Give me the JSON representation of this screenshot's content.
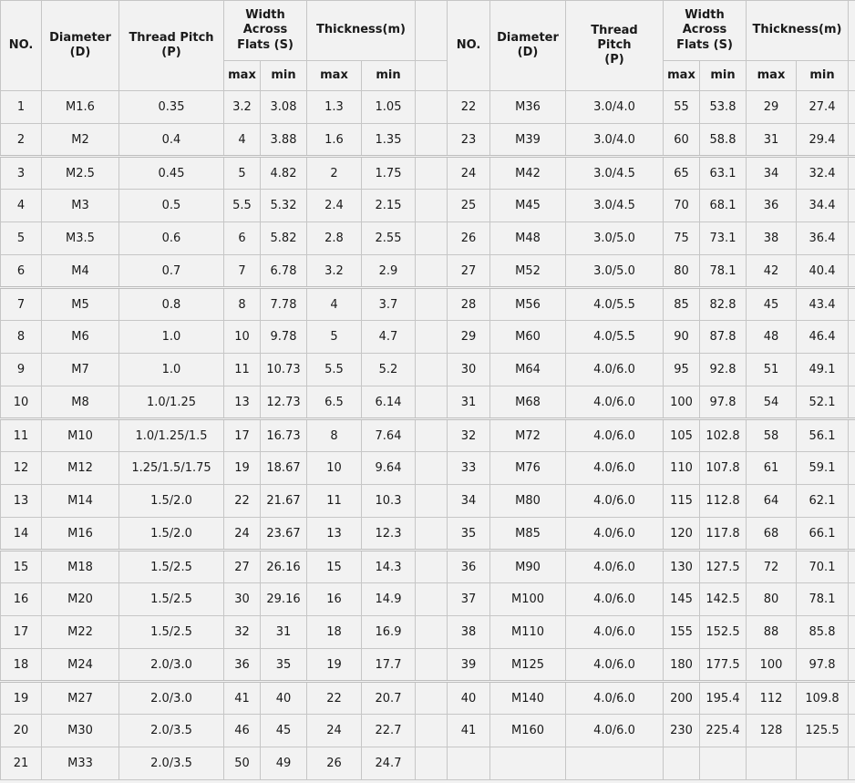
{
  "table": {
    "title_semantic": "metric-nut-dimensions-table",
    "headers": {
      "no": "NO.",
      "diameter": "Diameter (D)",
      "thread_pitch": "Thread Pitch (P)",
      "width_across_flats": "Width Across Flats (S)",
      "thickness": "Thickness(m)",
      "max": "max",
      "min": "min"
    },
    "left_rows": [
      [
        "1",
        "M1.6",
        "0.35",
        "3.2",
        "3.08",
        "1.3",
        "1.05"
      ],
      [
        "2",
        "M2",
        "0.4",
        "4",
        "3.88",
        "1.6",
        "1.35"
      ],
      [
        "3",
        "M2.5",
        "0.45",
        "5",
        "4.82",
        "2",
        "1.75"
      ],
      [
        "4",
        "M3",
        "0.5",
        "5.5",
        "5.32",
        "2.4",
        "2.15"
      ],
      [
        "5",
        "M3.5",
        "0.6",
        "6",
        "5.82",
        "2.8",
        "2.55"
      ],
      [
        "6",
        "M4",
        "0.7",
        "7",
        "6.78",
        "3.2",
        "2.9"
      ],
      [
        "7",
        "M5",
        "0.8",
        "8",
        "7.78",
        "4",
        "3.7"
      ],
      [
        "8",
        "M6",
        "1.0",
        "10",
        "9.78",
        "5",
        "4.7"
      ],
      [
        "9",
        "M7",
        "1.0",
        "11",
        "10.73",
        "5.5",
        "5.2"
      ],
      [
        "10",
        "M8",
        "1.0/1.25",
        "13",
        "12.73",
        "6.5",
        "6.14"
      ],
      [
        "11",
        "M10",
        "1.0/1.25/1.5",
        "17",
        "16.73",
        "8",
        "7.64"
      ],
      [
        "12",
        "M12",
        "1.25/1.5/1.75",
        "19",
        "18.67",
        "10",
        "9.64"
      ],
      [
        "13",
        "M14",
        "1.5/2.0",
        "22",
        "21.67",
        "11",
        "10.3"
      ],
      [
        "14",
        "M16",
        "1.5/2.0",
        "24",
        "23.67",
        "13",
        "12.3"
      ],
      [
        "15",
        "M18",
        "1.5/2.5",
        "27",
        "26.16",
        "15",
        "14.3"
      ],
      [
        "16",
        "M20",
        "1.5/2.5",
        "30",
        "29.16",
        "16",
        "14.9"
      ],
      [
        "17",
        "M22",
        "1.5/2.5",
        "32",
        "31",
        "18",
        "16.9"
      ],
      [
        "18",
        "M24",
        "2.0/3.0",
        "36",
        "35",
        "19",
        "17.7"
      ],
      [
        "19",
        "M27",
        "2.0/3.0",
        "41",
        "40",
        "22",
        "20.7"
      ],
      [
        "20",
        "M30",
        "2.0/3.5",
        "46",
        "45",
        "24",
        "22.7"
      ],
      [
        "21",
        "M33",
        "2.0/3.5",
        "50",
        "49",
        "26",
        "24.7"
      ]
    ],
    "right_rows": [
      [
        "22",
        "M36",
        "3.0/4.0",
        "55",
        "53.8",
        "29",
        "27.4"
      ],
      [
        "23",
        "M39",
        "3.0/4.0",
        "60",
        "58.8",
        "31",
        "29.4"
      ],
      [
        "24",
        "M42",
        "3.0/4.5",
        "65",
        "63.1",
        "34",
        "32.4"
      ],
      [
        "25",
        "M45",
        "3.0/4.5",
        "70",
        "68.1",
        "36",
        "34.4"
      ],
      [
        "26",
        "M48",
        "3.0/5.0",
        "75",
        "73.1",
        "38",
        "36.4"
      ],
      [
        "27",
        "M52",
        "3.0/5.0",
        "80",
        "78.1",
        "42",
        "40.4"
      ],
      [
        "28",
        "M56",
        "4.0/5.5",
        "85",
        "82.8",
        "45",
        "43.4"
      ],
      [
        "29",
        "M60",
        "4.0/5.5",
        "90",
        "87.8",
        "48",
        "46.4"
      ],
      [
        "30",
        "M64",
        "4.0/6.0",
        "95",
        "92.8",
        "51",
        "49.1"
      ],
      [
        "31",
        "M68",
        "4.0/6.0",
        "100",
        "97.8",
        "54",
        "52.1"
      ],
      [
        "32",
        "M72",
        "4.0/6.0",
        "105",
        "102.8",
        "58",
        "56.1"
      ],
      [
        "33",
        "M76",
        "4.0/6.0",
        "110",
        "107.8",
        "61",
        "59.1"
      ],
      [
        "34",
        "M80",
        "4.0/6.0",
        "115",
        "112.8",
        "64",
        "62.1"
      ],
      [
        "35",
        "M85",
        "4.0/6.0",
        "120",
        "117.8",
        "68",
        "66.1"
      ],
      [
        "36",
        "M90",
        "4.0/6.0",
        "130",
        "127.5",
        "72",
        "70.1"
      ],
      [
        "37",
        "M100",
        "4.0/6.0",
        "145",
        "142.5",
        "80",
        "78.1"
      ],
      [
        "38",
        "M110",
        "4.0/6.0",
        "155",
        "152.5",
        "88",
        "85.8"
      ],
      [
        "39",
        "M125",
        "4.0/6.0",
        "180",
        "177.5",
        "100",
        "97.8"
      ],
      [
        "40",
        "M140",
        "4.0/6.0",
        "200",
        "195.4",
        "112",
        "109.8"
      ],
      [
        "41",
        "M160",
        "4.0/6.0",
        "230",
        "225.4",
        "128",
        "125.5"
      ],
      [
        "",
        "",
        "",
        "",
        "",
        "",
        ""
      ]
    ],
    "group_break_after": [
      2,
      6,
      10,
      14,
      18
    ],
    "colors": {
      "cell_bg": "#f2f2f2",
      "border": "#c6c6c6",
      "group_border": "#bdbdbd",
      "text": "#1a1a1a"
    }
  }
}
